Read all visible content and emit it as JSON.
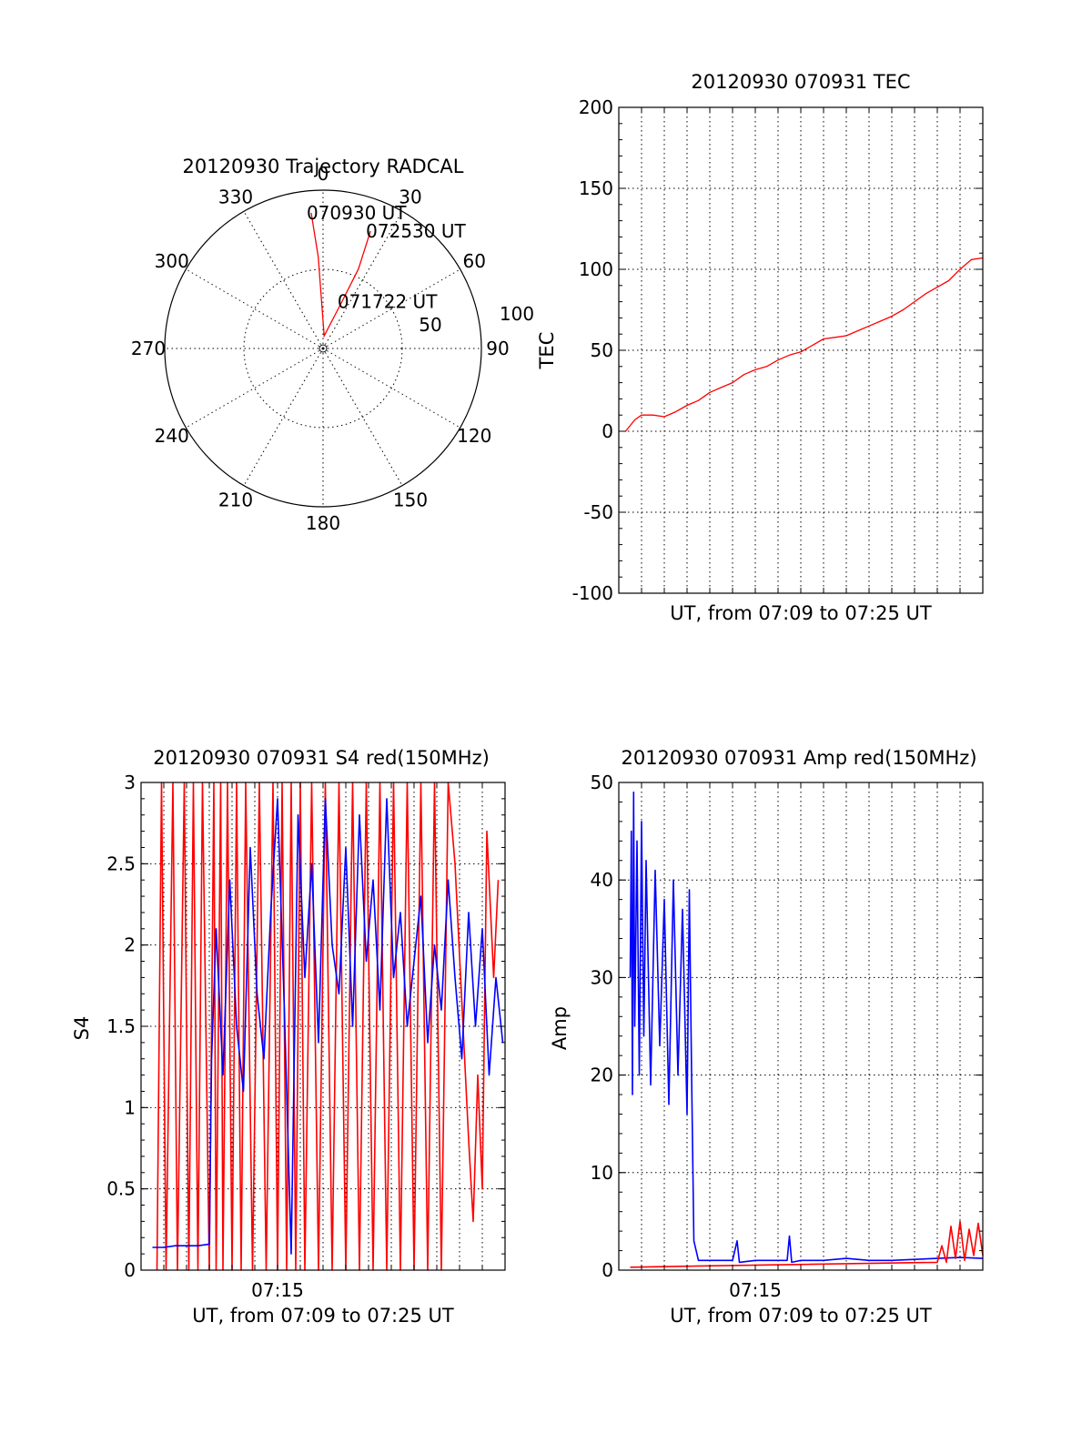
{
  "chart_data": [
    {
      "id": "polar",
      "type": "polar-trajectory",
      "title": "20120930 Trajectory RADCAL",
      "azimuth_labels": [
        "0",
        "30",
        "60",
        "90",
        "120",
        "150",
        "180",
        "210",
        "240",
        "270",
        "300",
        "330"
      ],
      "radius_labels": [
        "50",
        "100"
      ],
      "rmax": 100,
      "grid": true,
      "series": [
        {
          "color": "#ff0000",
          "points": [
            [
              -5,
              86
            ],
            [
              -3,
              58
            ],
            [
              5,
              8
            ],
            [
              22,
              32
            ],
            [
              24,
              55
            ],
            [
              22,
              80
            ]
          ]
        }
      ],
      "annotations": [
        {
          "text": "070930 UT",
          "az": -5,
          "r": 86
        },
        {
          "text": "071722 UT",
          "az": 22,
          "r": 32
        },
        {
          "text": "072530 UT",
          "az": 22,
          "r": 80
        }
      ]
    },
    {
      "id": "tec",
      "type": "line",
      "title": "20120930 070931 TEC",
      "xlabel": "UT, from 07:09 to 07:25 UT",
      "ylabel": "TEC",
      "xlim": [
        0,
        16
      ],
      "ylim": [
        -100,
        200
      ],
      "yticks": [
        "-100",
        "-50",
        "0",
        "50",
        "100",
        "150",
        "200"
      ],
      "grid": true,
      "series": [
        {
          "color": "#ff0000",
          "x": [
            0.3,
            0.7,
            1,
            1.5,
            2,
            2.5,
            3,
            3.5,
            4,
            4.5,
            5,
            5.5,
            6,
            6.5,
            7,
            7.5,
            8,
            8.5,
            9,
            9.5,
            10,
            10.5,
            11,
            11.5,
            12,
            12.5,
            13,
            13.5,
            14,
            14.5,
            15,
            15.5,
            16
          ],
          "y": [
            0,
            7,
            10,
            10,
            9,
            12,
            16,
            19,
            24,
            27,
            30,
            35,
            38,
            40,
            44,
            47,
            49,
            53,
            57,
            58,
            59,
            62,
            65,
            68,
            71,
            75,
            80,
            85,
            89,
            93,
            100,
            106,
            107
          ]
        }
      ]
    },
    {
      "id": "s4",
      "type": "line",
      "title": "20120930 070931 S4 red(150MHz)",
      "xlabel": "UT, from 07:09 to 07:25 UT",
      "ylabel": "S4",
      "xlim": [
        0,
        16
      ],
      "ylim": [
        0,
        3
      ],
      "xticks": [
        {
          "value": 6,
          "label": "07:15"
        }
      ],
      "yticks": [
        "0",
        "0.5",
        "1",
        "1.5",
        "2",
        "2.5",
        "3"
      ],
      "grid": true,
      "series": [
        {
          "color": "#ff0000",
          "x": [
            0.7,
            0.9,
            1.1,
            1.4,
            1.6,
            1.9,
            2.1,
            2.3,
            2.5,
            2.7,
            3.0,
            3.2,
            3.3,
            3.5,
            3.6,
            3.8,
            4.0,
            4.2,
            4.4,
            4.6,
            4.9,
            5.2,
            5.5,
            5.8,
            6.0,
            6.2,
            6.4,
            6.6,
            6.8,
            7.0,
            7.2,
            7.5,
            7.8,
            8.1,
            8.4,
            8.7,
            9.0,
            9.3,
            9.6,
            9.9,
            10.2,
            10.5,
            10.8,
            11.1,
            11.4,
            11.7,
            12.0,
            12.3,
            12.6,
            12.9,
            13.2,
            13.5,
            13.8,
            14.4,
            14.6,
            14.8,
            15.0,
            15.2,
            15.5,
            15.7
          ],
          "y": [
            0,
            3,
            0,
            3,
            0,
            3,
            0,
            3,
            0,
            3,
            0,
            3,
            0,
            3,
            0,
            3,
            0,
            3,
            0,
            3,
            0,
            3,
            0,
            3,
            0,
            3,
            0,
            3,
            0,
            3,
            0,
            3,
            0,
            3,
            0,
            3,
            0,
            3,
            0,
            3,
            0,
            3,
            0,
            3,
            0,
            3,
            0,
            3,
            0,
            3,
            0,
            3,
            2.5,
            0.8,
            0.3,
            1.2,
            0.5,
            2.7,
            1.8,
            2.4
          ]
        },
        {
          "color": "#0000ff",
          "x": [
            0.5,
            1.0,
            1.5,
            2.0,
            2.5,
            3.0,
            3.1,
            3.3,
            3.6,
            3.9,
            4.2,
            4.5,
            4.8,
            5.1,
            5.4,
            5.7,
            6.0,
            6.3,
            6.6,
            6.9,
            7.2,
            7.5,
            7.8,
            8.1,
            8.4,
            8.7,
            9.0,
            9.3,
            9.6,
            9.9,
            10.2,
            10.5,
            10.8,
            11.1,
            11.4,
            11.7,
            12.0,
            12.3,
            12.6,
            12.9,
            13.2,
            13.5,
            13.8,
            14.1,
            14.4,
            14.7,
            15.0,
            15.3,
            15.6,
            15.9
          ],
          "y": [
            0.14,
            0.14,
            0.15,
            0.15,
            0.15,
            0.16,
            1.3,
            2.1,
            1.2,
            2.4,
            1.5,
            1.1,
            2.6,
            1.7,
            1.3,
            2.2,
            2.9,
            1.6,
            0.1,
            2.8,
            1.8,
            2.5,
            1.4,
            2.9,
            2.0,
            1.7,
            2.6,
            1.5,
            2.8,
            1.9,
            2.4,
            1.6,
            2.9,
            1.8,
            2.2,
            1.5,
            1.9,
            2.3,
            1.4,
            2.0,
            1.6,
            2.4,
            1.8,
            1.3,
            2.2,
            1.5,
            2.1,
            1.2,
            1.8,
            1.4
          ]
        }
      ]
    },
    {
      "id": "amp",
      "type": "line",
      "title": "20120930 070931 Amp red(150MHz)",
      "xlabel": "UT, from 07:09 to 07:25 UT",
      "ylabel": "Amp",
      "xlim": [
        0,
        16
      ],
      "ylim": [
        0,
        50
      ],
      "xticks": [
        {
          "value": 6,
          "label": "07:15"
        }
      ],
      "yticks": [
        "0",
        "10",
        "20",
        "30",
        "40",
        "50"
      ],
      "grid": true,
      "series": [
        {
          "color": "#0000ff",
          "x": [
            0.5,
            0.55,
            0.6,
            0.65,
            0.7,
            0.8,
            0.9,
            1.0,
            1.1,
            1.2,
            1.4,
            1.6,
            1.8,
            2.0,
            2.2,
            2.4,
            2.6,
            2.8,
            3.0,
            3.1,
            3.2,
            3.3,
            3.5,
            4,
            5,
            5.2,
            5.3,
            6,
            6.5,
            7.4,
            7.5,
            7.6,
            8,
            9,
            10,
            11,
            12,
            13,
            14,
            15,
            16
          ],
          "y": [
            30,
            45,
            18,
            49,
            25,
            44,
            20,
            46,
            24,
            42,
            19,
            41,
            23,
            38,
            17,
            40,
            20,
            37,
            16,
            39,
            20,
            3,
            1,
            1,
            1,
            3,
            0.8,
            1,
            1,
            1,
            3.5,
            0.8,
            1,
            1,
            1.2,
            1,
            1,
            1.1,
            1.2,
            1.3,
            1.2
          ]
        },
        {
          "color": "#ff0000",
          "x": [
            0.5,
            3,
            14,
            14.2,
            14.4,
            14.6,
            14.8,
            15.0,
            15.2,
            15.4,
            15.6,
            15.8,
            16
          ],
          "y": [
            0.3,
            0.4,
            0.8,
            2.5,
            0.8,
            4.5,
            1.2,
            5,
            1,
            4.2,
            1.5,
            4.8,
            1.5
          ]
        }
      ]
    }
  ]
}
